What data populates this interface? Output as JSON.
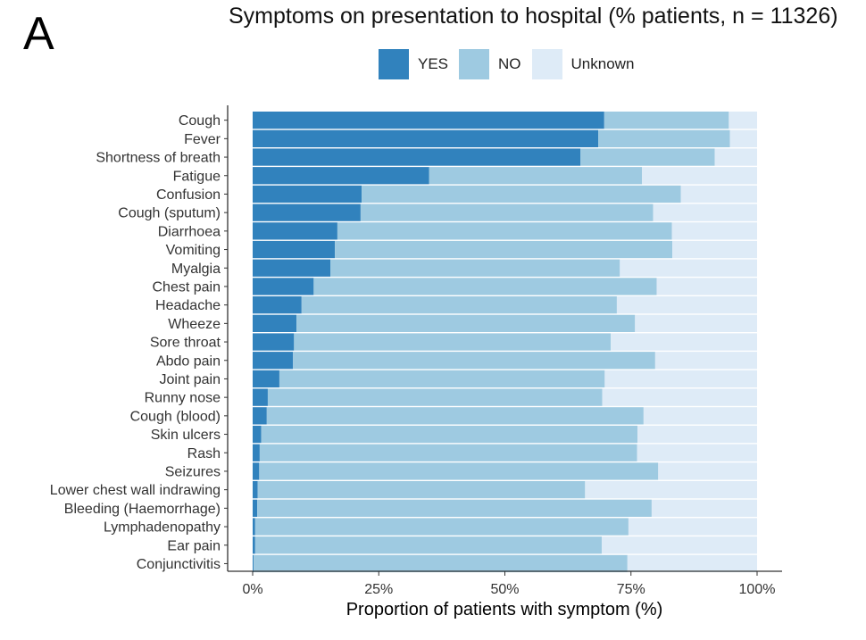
{
  "panel_label": "A",
  "chart_data": {
    "type": "bar",
    "orientation": "horizontal",
    "stacked": true,
    "title": "Symptoms on presentation to hospital (% patients, n = 11326)",
    "xlabel": "Proportion of patients with symptom (%)",
    "ylabel": "",
    "xlim": [
      0,
      100
    ],
    "xticks": [
      0,
      25,
      50,
      75,
      100
    ],
    "xtick_labels": [
      "0%",
      "25%",
      "50%",
      "75%",
      "100%"
    ],
    "legend_position": "top",
    "categories": [
      "Cough",
      "Fever",
      "Shortness of breath",
      "Fatigue",
      "Confusion",
      "Cough (sputum)",
      "Diarrhoea",
      "Vomiting",
      "Myalgia",
      "Chest pain",
      "Headache",
      "Wheeze",
      "Sore throat",
      "Abdo pain",
      "Joint pain",
      "Runny nose",
      "Cough (blood)",
      "Skin ulcers",
      "Rash",
      "Seizures",
      "Lower chest wall indrawing",
      "Bleeding (Haemorrhage)",
      "Lymphadenopathy",
      "Ear pain",
      "Conjunctivitis"
    ],
    "series": [
      {
        "name": "YES",
        "color": "#3182bd",
        "values": [
          69.7,
          68.5,
          65.0,
          35.0,
          21.6,
          21.4,
          16.8,
          16.3,
          15.4,
          12.1,
          9.7,
          8.7,
          8.2,
          8.0,
          5.3,
          3.0,
          2.8,
          1.7,
          1.4,
          1.3,
          1.0,
          0.9,
          0.5,
          0.5,
          0.2
        ]
      },
      {
        "name": "NO",
        "color": "#9ecae1",
        "values": [
          24.7,
          26.1,
          26.6,
          42.2,
          63.3,
          58.0,
          66.3,
          66.9,
          57.4,
          68.0,
          62.5,
          67.1,
          62.8,
          71.8,
          64.5,
          66.3,
          74.7,
          74.6,
          74.8,
          79.1,
          64.9,
          78.2,
          74.0,
          68.7,
          74.1
        ]
      },
      {
        "name": "Unknown",
        "color": "#deebf7",
        "values": [
          5.6,
          5.4,
          8.4,
          22.8,
          15.1,
          20.6,
          16.9,
          16.8,
          27.2,
          19.9,
          27.8,
          24.2,
          29.0,
          20.2,
          30.2,
          30.7,
          22.5,
          23.7,
          23.8,
          19.6,
          34.1,
          20.9,
          25.5,
          30.8,
          25.7
        ]
      }
    ]
  }
}
